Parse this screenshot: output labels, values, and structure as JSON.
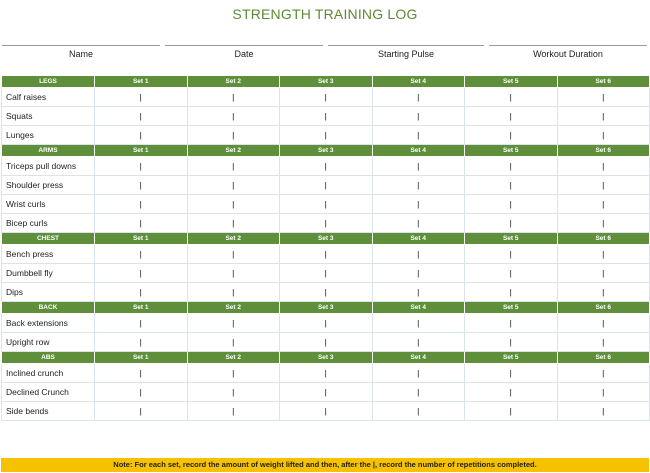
{
  "title": "STRENGTH TRAINING LOG",
  "header_fields": [
    "Name",
    "Date",
    "Starting Pulse",
    "Workout Duration"
  ],
  "set_labels": [
    "Set 1",
    "Set 2",
    "Set 3",
    "Set 4",
    "Set 5",
    "Set 6"
  ],
  "cell_mark": "|",
  "sections": [
    {
      "name": "LEGS",
      "exercises": [
        "Calf raises",
        "Squats",
        "Lunges"
      ]
    },
    {
      "name": "ARMS",
      "exercises": [
        "Triceps pull downs",
        "Shoulder press",
        "Wrist curls",
        "Bicep curls"
      ]
    },
    {
      "name": "CHEST",
      "exercises": [
        "Bench press",
        "Dumbbell fly",
        "Dips"
      ]
    },
    {
      "name": "BACK",
      "exercises": [
        "Back extensions",
        "Upright row"
      ]
    },
    {
      "name": "ABS",
      "exercises": [
        "Inclined crunch",
        "Declined Crunch",
        "Side bends"
      ]
    }
  ],
  "note": "Note:  For each set, record the amount of weight lifted and then, after the |, record the number of repetitions completed.",
  "colors": {
    "header_green": "#5f8f3b",
    "title_green": "#5e8a35",
    "note_yellow": "#f6c200"
  }
}
